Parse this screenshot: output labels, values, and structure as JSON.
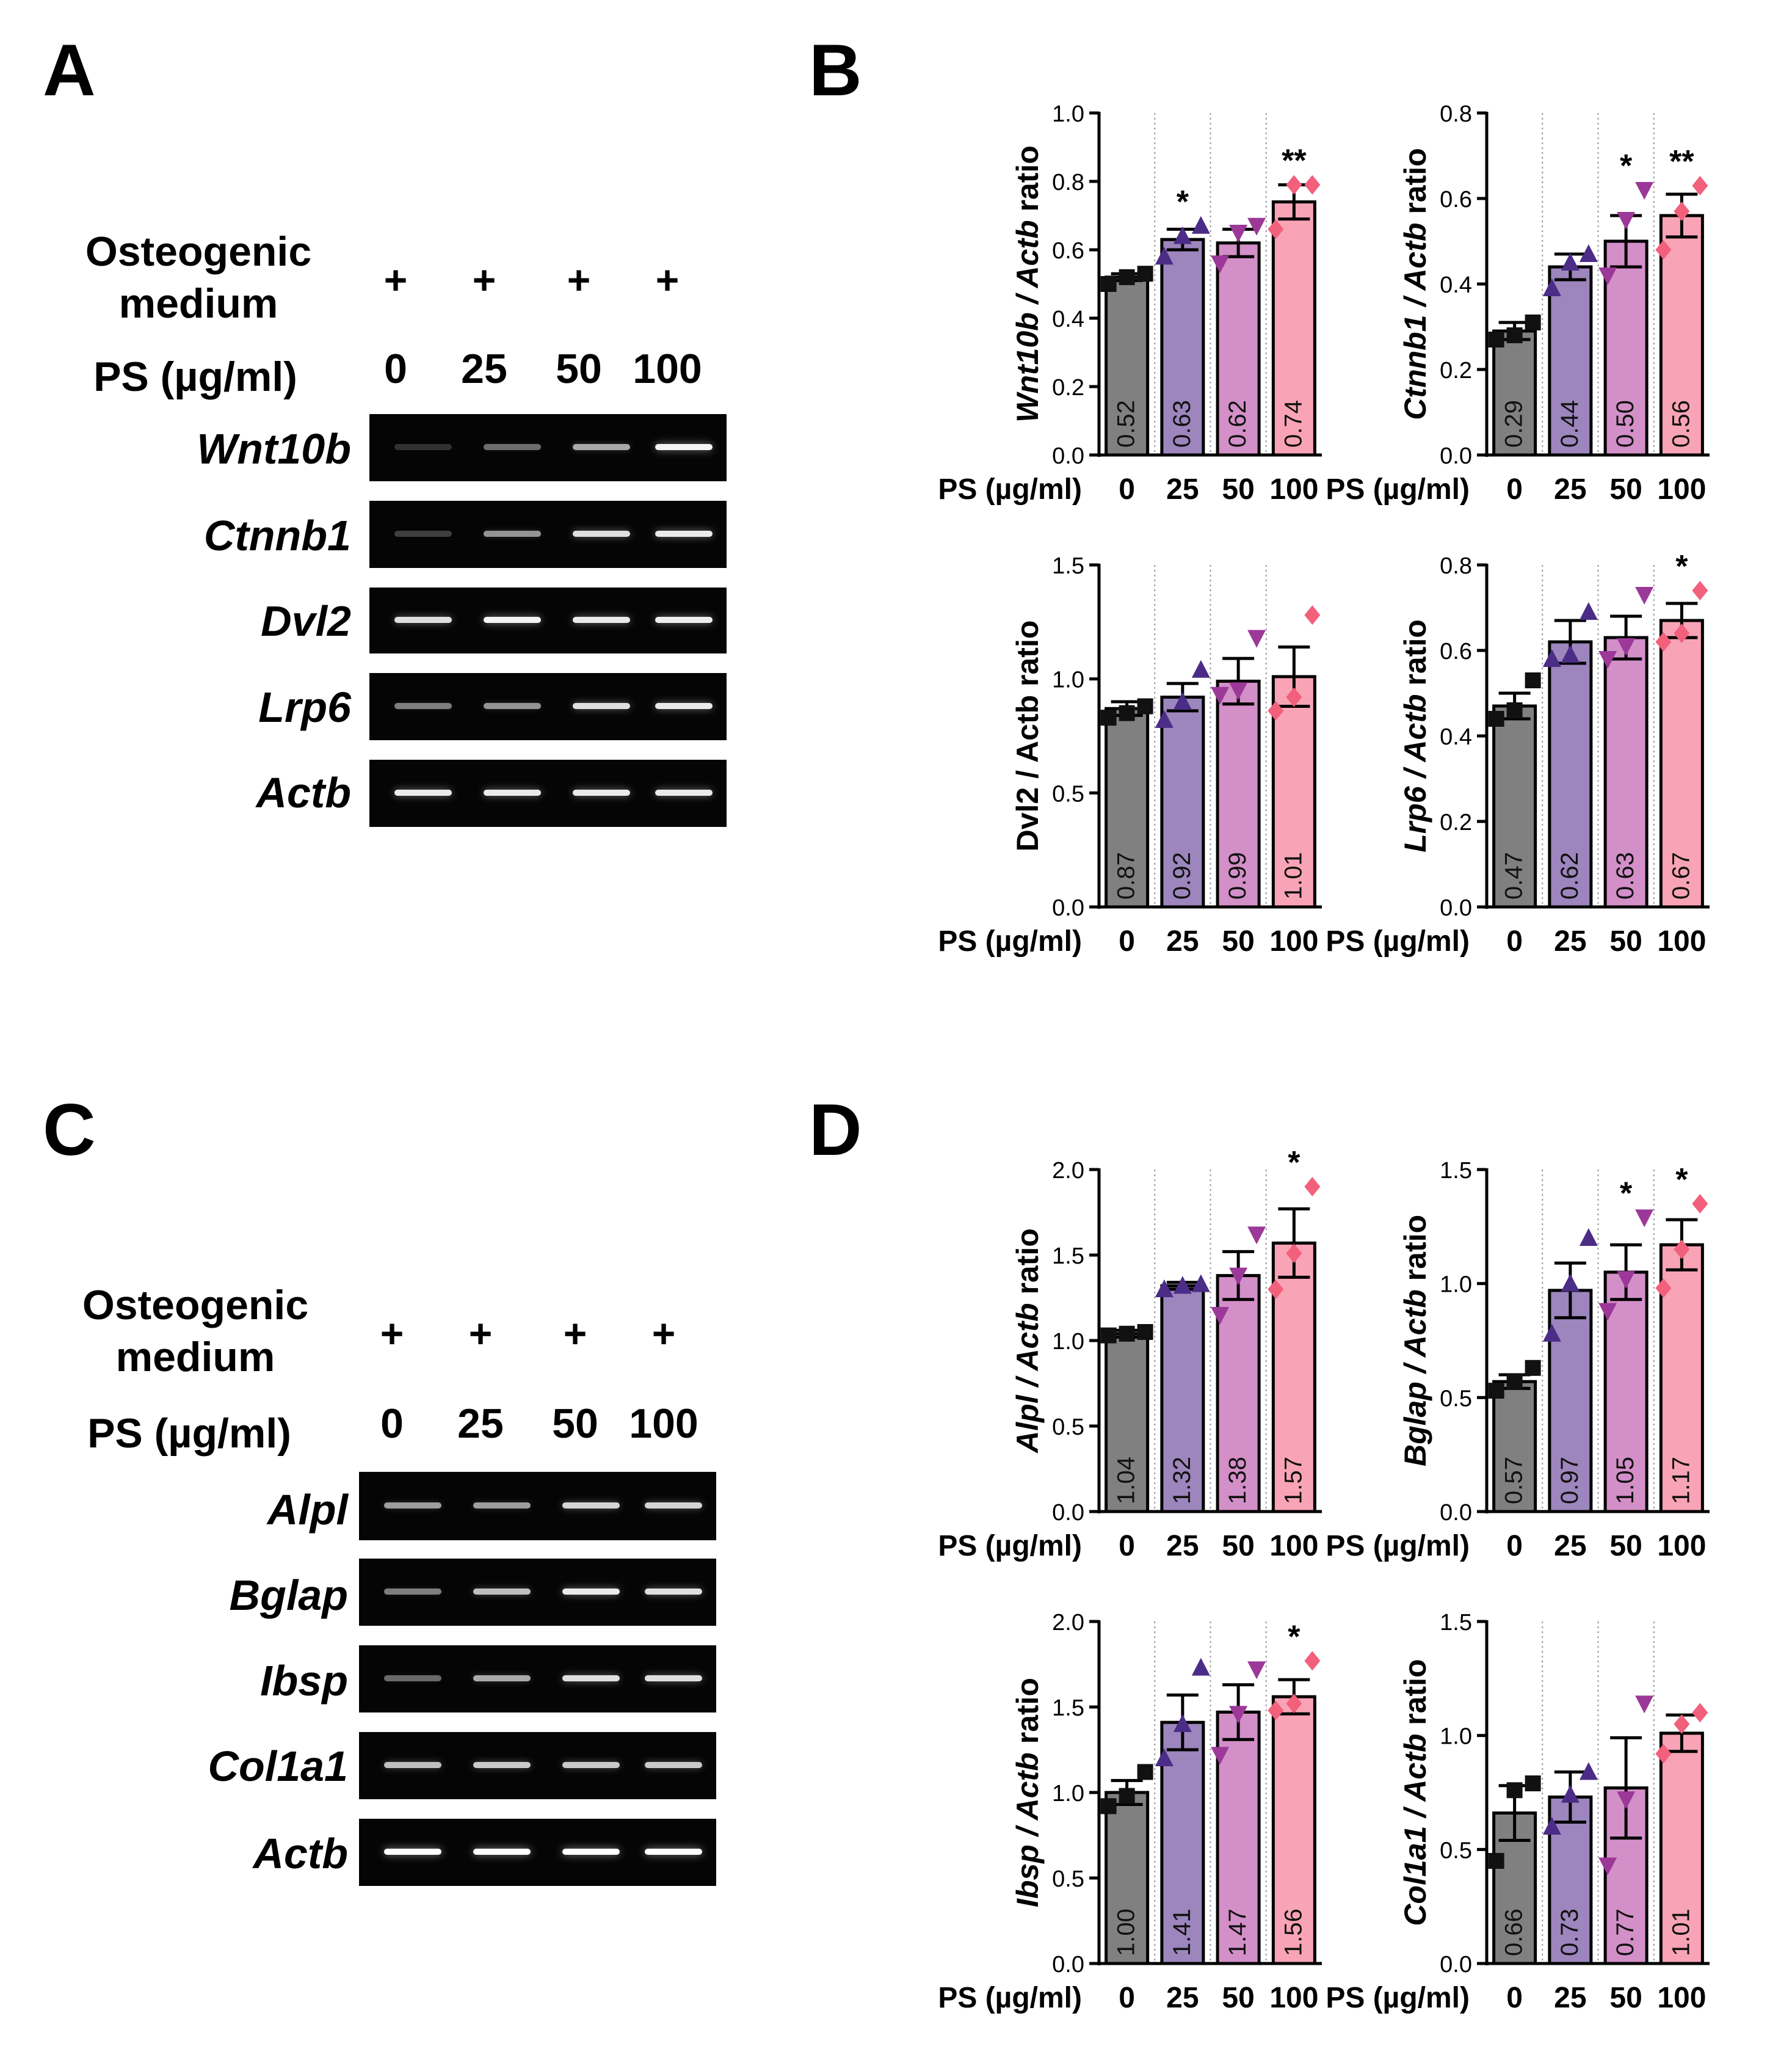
{
  "panels": {
    "a": "A",
    "b": "B",
    "c": "C",
    "d": "D"
  },
  "gel_a": {
    "header_line1": "Osteogenic",
    "header_line2": "medium",
    "ps_label": "PS (µg/ml)",
    "plus": [
      "+",
      "+",
      "+",
      "+"
    ],
    "doses": [
      "0",
      "25",
      "50",
      "100"
    ],
    "genes": [
      {
        "name": "Wnt10b",
        "intensity": [
          0.04,
          0.32,
          0.6,
          0.95
        ]
      },
      {
        "name": "Ctnnb1",
        "intensity": [
          0.1,
          0.5,
          0.85,
          0.9
        ]
      },
      {
        "name": "Dvl2",
        "intensity": [
          0.85,
          0.95,
          0.9,
          0.92
        ]
      },
      {
        "name": "Lrp6",
        "intensity": [
          0.4,
          0.5,
          0.85,
          0.9
        ]
      },
      {
        "name": "Actb",
        "intensity": [
          0.9,
          0.9,
          0.9,
          0.9
        ]
      }
    ]
  },
  "gel_c": {
    "header_line1": "Osteogenic",
    "header_line2": "medium",
    "ps_label": "PS (µg/ml)",
    "plus": [
      "+",
      "+",
      "+",
      "+"
    ],
    "doses": [
      "0",
      "25",
      "50",
      "100"
    ],
    "genes": [
      {
        "name": "Alpl",
        "intensity": [
          0.55,
          0.55,
          0.8,
          0.8
        ]
      },
      {
        "name": "Bglap",
        "intensity": [
          0.4,
          0.7,
          0.9,
          0.85
        ]
      },
      {
        "name": "Ibsp",
        "intensity": [
          0.3,
          0.6,
          0.85,
          0.85
        ]
      },
      {
        "name": "Col1a1",
        "intensity": [
          0.7,
          0.75,
          0.75,
          0.75
        ]
      },
      {
        "name": "Actb",
        "intensity": [
          1.0,
          1.0,
          1.0,
          1.0
        ]
      }
    ]
  },
  "colors": {
    "bars": [
      "#808080",
      "#9c86bd",
      "#d38fc8",
      "#f9a4b6"
    ],
    "points": [
      "#111111",
      "#4b2c86",
      "#9c3898",
      "#f2607c"
    ]
  },
  "chart_data": [
    {
      "type": "bar",
      "gene": "Wnt10b",
      "ylabel_italic": "Wnt10b / Actb",
      "ylabel_rest": " ratio",
      "xlabel": "PS (µg/ml)",
      "categories": [
        "0",
        "25",
        "50",
        "100"
      ],
      "values": [
        0.52,
        0.63,
        0.62,
        0.74
      ],
      "value_labels": [
        "0.52",
        "0.63",
        "0.62",
        "0.74"
      ],
      "sem": [
        0.01,
        0.03,
        0.04,
        0.05
      ],
      "points": [
        [
          0.5,
          0.52,
          0.53
        ],
        [
          0.58,
          0.64,
          0.67
        ],
        [
          0.56,
          0.65,
          0.67
        ],
        [
          0.66,
          0.79,
          0.79
        ]
      ],
      "markers": [
        "square",
        "triangle",
        "triangle-down",
        "diamond"
      ],
      "sig": [
        "",
        "*",
        "",
        "**"
      ],
      "ylim": [
        0.0,
        1.0
      ],
      "yticks": [
        "0.0",
        "0.2",
        "0.4",
        "0.6",
        "0.8",
        "1.0"
      ]
    },
    {
      "type": "bar",
      "gene": "Ctnnb1",
      "ylabel_italic": "Ctnnb1 / Actb",
      "ylabel_rest": " ratio",
      "xlabel": "PS (µg/ml)",
      "categories": [
        "0",
        "25",
        "50",
        "100"
      ],
      "values": [
        0.29,
        0.44,
        0.5,
        0.56
      ],
      "value_labels": [
        "0.29",
        "0.44",
        "0.50",
        "0.56"
      ],
      "sem": [
        0.02,
        0.03,
        0.06,
        0.05
      ],
      "points": [
        [
          0.27,
          0.28,
          0.31
        ],
        [
          0.39,
          0.45,
          0.47
        ],
        [
          0.42,
          0.55,
          0.62
        ],
        [
          0.48,
          0.57,
          0.63
        ]
      ],
      "markers": [
        "square",
        "triangle",
        "triangle-down",
        "diamond"
      ],
      "sig": [
        "",
        "",
        "*",
        "**"
      ],
      "ylim": [
        0.0,
        0.8
      ],
      "yticks": [
        "0.0",
        "0.2",
        "0.4",
        "0.6",
        "0.8"
      ]
    },
    {
      "type": "bar",
      "gene": "Dvl2",
      "ylabel_italic": "",
      "ylabel_rest": "Dvl2 / Actb ratio",
      "xlabel": "PS (µg/ml)",
      "categories": [
        "0",
        "25",
        "50",
        "100"
      ],
      "values": [
        0.87,
        0.92,
        0.99,
        1.01
      ],
      "value_labels": [
        "0.87",
        "0.92",
        "0.99",
        "1.01"
      ],
      "sem": [
        0.03,
        0.06,
        0.1,
        0.13
      ],
      "points": [
        [
          0.83,
          0.85,
          0.88
        ],
        [
          0.82,
          0.9,
          1.04
        ],
        [
          0.93,
          0.95,
          1.18
        ],
        [
          0.86,
          0.92,
          1.28
        ]
      ],
      "markers": [
        "square",
        "triangle",
        "triangle-down",
        "diamond"
      ],
      "sig": [
        "",
        "",
        "",
        ""
      ],
      "ylim": [
        0.0,
        1.5
      ],
      "yticks": [
        "0.0",
        "0.5",
        "1.0",
        "1.5"
      ]
    },
    {
      "type": "bar",
      "gene": "Lrp6",
      "ylabel_italic": "Lrp6 / Actb",
      "ylabel_rest": " ratio",
      "xlabel": "PS (µg/ml)",
      "categories": [
        "0",
        "25",
        "50",
        "100"
      ],
      "values": [
        0.47,
        0.62,
        0.63,
        0.67
      ],
      "value_labels": [
        "0.47",
        "0.62",
        "0.63",
        "0.67"
      ],
      "sem": [
        0.03,
        0.05,
        0.05,
        0.04
      ],
      "points": [
        [
          0.44,
          0.46,
          0.53
        ],
        [
          0.58,
          0.59,
          0.69
        ],
        [
          0.58,
          0.61,
          0.73
        ],
        [
          0.62,
          0.64,
          0.74
        ]
      ],
      "markers": [
        "square",
        "triangle",
        "triangle-down",
        "diamond"
      ],
      "sig": [
        "",
        "",
        "",
        "*"
      ],
      "ylim": [
        0.0,
        0.8
      ],
      "yticks": [
        "0.0",
        "0.2",
        "0.4",
        "0.6",
        "0.8"
      ]
    },
    {
      "type": "bar",
      "gene": "Alpl",
      "ylabel_italic": "Alpl / Actb",
      "ylabel_rest": " ratio",
      "xlabel": "PS (µg/ml)",
      "categories": [
        "0",
        "25",
        "50",
        "100"
      ],
      "values": [
        1.04,
        1.32,
        1.38,
        1.57
      ],
      "value_labels": [
        "1.04",
        "1.32",
        "1.38",
        "1.57"
      ],
      "sem": [
        0.02,
        0.02,
        0.14,
        0.2
      ],
      "points": [
        [
          1.03,
          1.04,
          1.05
        ],
        [
          1.3,
          1.32,
          1.33
        ],
        [
          1.15,
          1.38,
          1.62
        ],
        [
          1.3,
          1.51,
          1.9
        ]
      ],
      "markers": [
        "square",
        "triangle",
        "triangle-down",
        "diamond"
      ],
      "sig": [
        "",
        "",
        "",
        "*"
      ],
      "ylim": [
        0.0,
        2.0
      ],
      "yticks": [
        "0.0",
        "0.5",
        "1.0",
        "1.5",
        "2.0"
      ]
    },
    {
      "type": "bar",
      "gene": "Bglap",
      "ylabel_italic": "Bglap / Actb",
      "ylabel_rest": " ratio",
      "xlabel": "PS (µg/ml)",
      "categories": [
        "0",
        "25",
        "50",
        "100"
      ],
      "values": [
        0.57,
        0.97,
        1.05,
        1.17
      ],
      "value_labels": [
        "0.57",
        "0.97",
        "1.05",
        "1.17"
      ],
      "sem": [
        0.03,
        0.12,
        0.12,
        0.11
      ],
      "points": [
        [
          0.53,
          0.57,
          0.63
        ],
        [
          0.78,
          1.0,
          1.2
        ],
        [
          0.88,
          1.02,
          1.29
        ],
        [
          0.98,
          1.15,
          1.35
        ]
      ],
      "markers": [
        "square",
        "triangle",
        "triangle-down",
        "diamond"
      ],
      "sig": [
        "",
        "",
        "*",
        "*"
      ],
      "ylim": [
        0.0,
        1.5
      ],
      "yticks": [
        "0.0",
        "0.5",
        "1.0",
        "1.5"
      ]
    },
    {
      "type": "bar",
      "gene": "Ibsp",
      "ylabel_italic": "Ibsp / Actb",
      "ylabel_rest": " ratio",
      "xlabel": "PS (µg/ml)",
      "categories": [
        "0",
        "25",
        "50",
        "100"
      ],
      "values": [
        1.0,
        1.41,
        1.47,
        1.56
      ],
      "value_labels": [
        "1.00",
        "1.41",
        "1.47",
        "1.56"
      ],
      "sem": [
        0.07,
        0.16,
        0.16,
        0.1
      ],
      "points": [
        [
          0.92,
          0.98,
          1.12
        ],
        [
          1.2,
          1.4,
          1.73
        ],
        [
          1.22,
          1.46,
          1.72
        ],
        [
          1.48,
          1.52,
          1.77
        ]
      ],
      "markers": [
        "square",
        "triangle",
        "triangle-down",
        "diamond"
      ],
      "sig": [
        "",
        "",
        "",
        "*"
      ],
      "ylim": [
        0.0,
        2.0
      ],
      "yticks": [
        "0.0",
        "0.5",
        "1.0",
        "1.5",
        "2.0"
      ]
    },
    {
      "type": "bar",
      "gene": "Col1a1",
      "ylabel_italic": "Col1a1 / Actb",
      "ylabel_rest": " ratio",
      "xlabel": "PS (µg/ml)",
      "categories": [
        "0",
        "25",
        "50",
        "100"
      ],
      "values": [
        0.66,
        0.73,
        0.77,
        1.01
      ],
      "value_labels": [
        "0.66",
        "0.73",
        "0.77",
        "1.01"
      ],
      "sem": [
        0.12,
        0.11,
        0.22,
        0.08
      ],
      "points": [
        [
          0.45,
          0.76,
          0.79
        ],
        [
          0.6,
          0.74,
          0.84
        ],
        [
          0.43,
          0.72,
          1.14
        ],
        [
          0.92,
          1.05,
          1.1
        ]
      ],
      "markers": [
        "square",
        "triangle",
        "triangle-down",
        "diamond"
      ],
      "sig": [
        "",
        "",
        "",
        ""
      ],
      "ylim": [
        0.0,
        1.5
      ],
      "yticks": [
        "0.0",
        "0.5",
        "1.0",
        "1.5"
      ]
    }
  ]
}
